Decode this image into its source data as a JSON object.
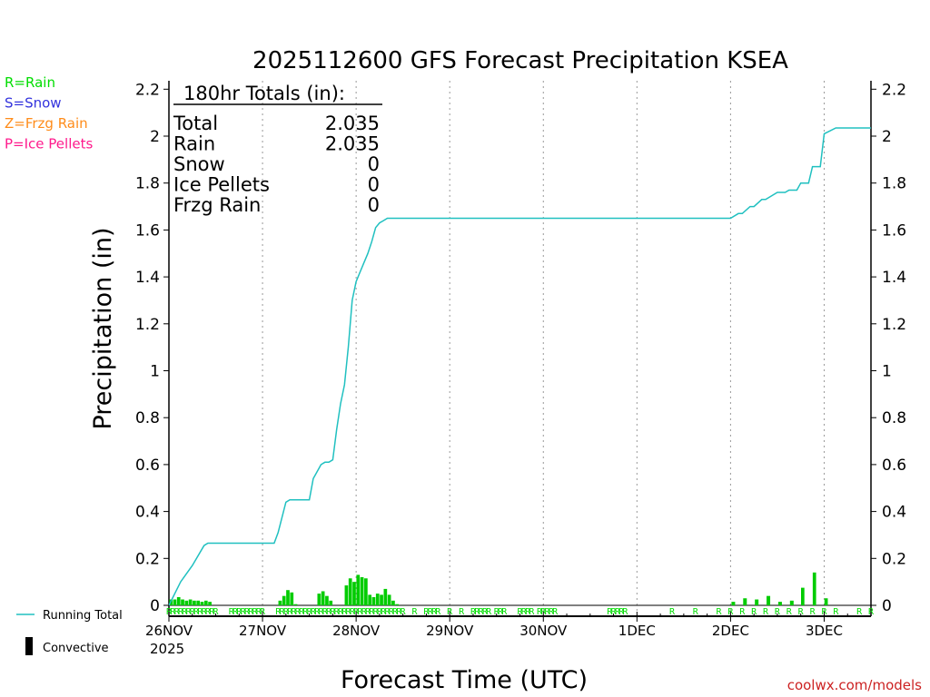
{
  "chart_data": {
    "type": "bar+line",
    "title": "2025112600 GFS Forecast Precipitation KSEA",
    "xlabel": "Forecast Time (UTC)",
    "ylabel": "Precipitation (in)",
    "ylim": [
      0,
      2.25
    ],
    "yticks": [
      "0",
      "0.2",
      "0.4",
      "0.6",
      "0.8",
      "1",
      "1.2",
      "1.4",
      "1.6",
      "1.8",
      "2",
      "2.2"
    ],
    "xticks": [
      "26NOV",
      "27NOV",
      "28NOV",
      "29NOV",
      "30NOV",
      "1DEC",
      "2DEC",
      "3DEC"
    ],
    "year_label": "2025",
    "forecast_hours": 180,
    "totals": {
      "header": "180hr Totals (in):",
      "rows": [
        {
          "label": "Total",
          "value": "2.035"
        },
        {
          "label": "Rain",
          "value": "2.035"
        },
        {
          "label": "Snow",
          "value": "0"
        },
        {
          "label": "Ice Pellets",
          "value": "0"
        },
        {
          "label": "Frzg Rain",
          "value": "0"
        }
      ]
    },
    "precip_type_key": [
      {
        "label": "R=Rain",
        "color": "#00dd00"
      },
      {
        "label": "S=Snow",
        "color": "#3333dd"
      },
      {
        "label": "Z=Frzg Rain",
        "color": "#ff8c1a"
      },
      {
        "label": "P=Ice Pellets",
        "color": "#ff1a8c"
      }
    ],
    "legend": [
      {
        "label": "Running Total",
        "color": "#20c0c0"
      },
      {
        "label": "Convective",
        "color": "#000000"
      }
    ],
    "hourly_bars_hour": [
      0,
      1,
      2,
      3,
      4,
      5,
      6,
      7,
      8,
      9,
      10,
      28,
      29,
      30,
      31,
      32,
      38,
      39,
      40,
      41,
      45,
      46,
      47,
      48,
      49,
      50,
      51,
      52,
      53,
      54,
      55,
      56,
      57,
      58,
      162,
      165,
      168
    ],
    "hourly_bars_in": [
      0.025,
      0.025,
      0.035,
      0.025,
      0.02,
      0.025,
      0.02,
      0.02,
      0.015,
      0.02,
      0.015,
      0.02,
      0.04,
      0.065,
      0.055,
      0.005,
      0.05,
      0.06,
      0.04,
      0.02,
      0.085,
      0.115,
      0.1,
      0.13,
      0.12,
      0.115,
      0.045,
      0.035,
      0.05,
      0.045,
      0.07,
      0.045,
      0.02,
      0.005,
      0.075,
      0.14,
      0.03
    ],
    "three_hourly_bars_hour": [
      144,
      147,
      150,
      153,
      156,
      159
    ],
    "three_hourly_bars_in": [
      0.015,
      0.03,
      0.025,
      0.04,
      0.015,
      0.02
    ],
    "running_total": {
      "hours": [
        0,
        3,
        6,
        9,
        10,
        12,
        18,
        24,
        27,
        28,
        30,
        31,
        33,
        36,
        37,
        39,
        40,
        41,
        42,
        43,
        44,
        45,
        46,
        47,
        48,
        49,
        50,
        51,
        52,
        53,
        54,
        55,
        56,
        57,
        60,
        144,
        146,
        147,
        149,
        150,
        152,
        153,
        156,
        158,
        159,
        161,
        162,
        164,
        165,
        167,
        168,
        171,
        180
      ],
      "values": [
        0.0,
        0.1,
        0.17,
        0.255,
        0.265,
        0.265,
        0.265,
        0.265,
        0.265,
        0.31,
        0.44,
        0.45,
        0.45,
        0.45,
        0.54,
        0.6,
        0.61,
        0.61,
        0.62,
        0.75,
        0.86,
        0.94,
        1.1,
        1.3,
        1.38,
        1.42,
        1.46,
        1.5,
        1.55,
        1.61,
        1.63,
        1.64,
        1.65,
        1.65,
        1.65,
        1.65,
        1.67,
        1.67,
        1.7,
        1.7,
        1.73,
        1.73,
        1.76,
        1.76,
        1.77,
        1.77,
        1.8,
        1.8,
        1.87,
        1.87,
        2.01,
        2.035,
        2.035
      ]
    },
    "rain_markers_hour": [
      0,
      1,
      2,
      3,
      4,
      5,
      6,
      7,
      8,
      9,
      10,
      11,
      12,
      16,
      17,
      18,
      19,
      20,
      21,
      22,
      23,
      24,
      28,
      29,
      30,
      31,
      32,
      33,
      34,
      35,
      36,
      37,
      38,
      39,
      40,
      41,
      42,
      43,
      44,
      45,
      46,
      47,
      48,
      49,
      50,
      51,
      52,
      53,
      54,
      55,
      56,
      57,
      58,
      59,
      60,
      63,
      66,
      67,
      68,
      69,
      72,
      75,
      78,
      79,
      80,
      81,
      82,
      84,
      85,
      86,
      90,
      91,
      92,
      93,
      95,
      96,
      97,
      98,
      99,
      113,
      114,
      115,
      116,
      117,
      129,
      135,
      141,
      144,
      147,
      150,
      153,
      156,
      159,
      162,
      165,
      168,
      171,
      177,
      180
    ],
    "marker_label": "R"
  },
  "footer": {
    "credit": "coolwx.com/models"
  }
}
